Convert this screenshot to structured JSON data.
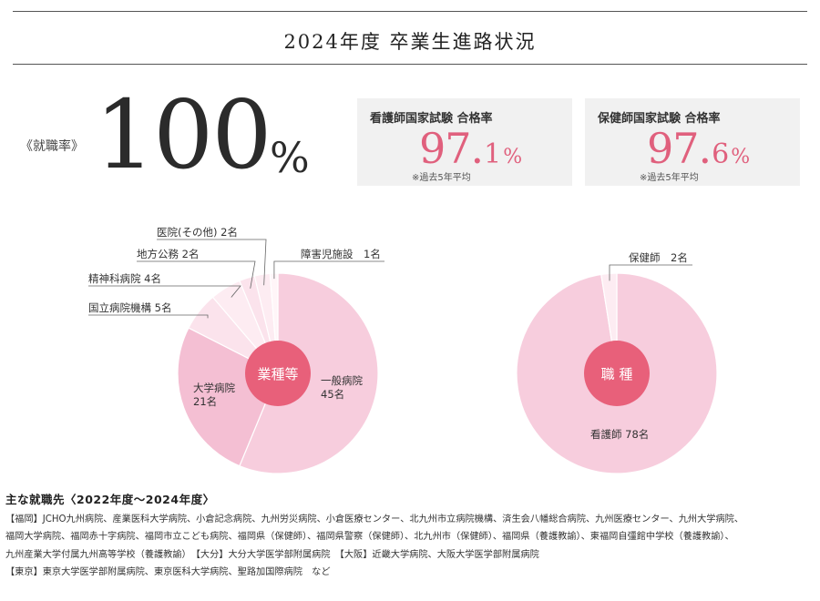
{
  "page_title": "2024年度  卒業生進路状況",
  "employment_rate": {
    "label": "《就職率》",
    "value": "100",
    "unit": "%"
  },
  "exam_rates": [
    {
      "title": "看護師国家試験 合格率",
      "integer": "97",
      "decimal": "1",
      "unit": "%",
      "note": "※過去5年平均"
    },
    {
      "title": "保健師国家試験 合格率",
      "integer": "97",
      "decimal": "6",
      "unit": "%",
      "note": "※過去5年平均"
    }
  ],
  "colors": {
    "center": "#e8607a",
    "slice_main": "#f7cddd",
    "slice_second": "#f4bfd3",
    "slice_light": "#fbe3ec",
    "slice_lighter": "#fdecf2",
    "slice_white": "#fff5f8",
    "accent": "#e0607d"
  },
  "chart_data": [
    {
      "type": "pie",
      "title": "業種等",
      "categories": [
        "一般病院",
        "大学病院",
        "国立病院機構",
        "精神科病院",
        "地方公務",
        "医院(その他)",
        "障害児施設"
      ],
      "values": [
        45,
        21,
        5,
        4,
        2,
        2,
        1
      ],
      "unit": "名",
      "labels": [
        "一般病院\n45名",
        "大学病院\n21名",
        "国立病院機構 5名",
        "精神科病院 4名",
        "地方公務 2名",
        "医院(その他) 2名",
        "障害児施設　1名"
      ]
    },
    {
      "type": "pie",
      "title": "職 種",
      "categories": [
        "看護師",
        "保健師"
      ],
      "values": [
        78,
        2
      ],
      "unit": "名",
      "labels": [
        "看護師 78名",
        "保健師　2名"
      ]
    }
  ],
  "employers": {
    "heading": "主な就職先〈2022年度〜2024年度〉",
    "lines": [
      "【福岡】JCHO九州病院、産業医科大学病院、小倉記念病院、九州労災病院、小倉医療センター、北九州市立病院機構、済生会八幡総合病院、九州医療センター、九州大学病院、",
      "福岡大学病院、福岡赤十字病院、福岡市立こども病院、福岡県（保健師）、福岡県警察（保健師）、北九州市（保健師）、福岡県（養護教諭）、東福岡自彊館中学校（養護教諭）、",
      "九州産業大学付属九州高等学校（養護教諭）　【大分】大分大学医学部附属病院　【大阪】近畿大学病院、大阪大学医学部附属病院",
      "【東京】東京大学医学部附属病院、東京医科大学病院、聖路加国際病院　など"
    ]
  }
}
